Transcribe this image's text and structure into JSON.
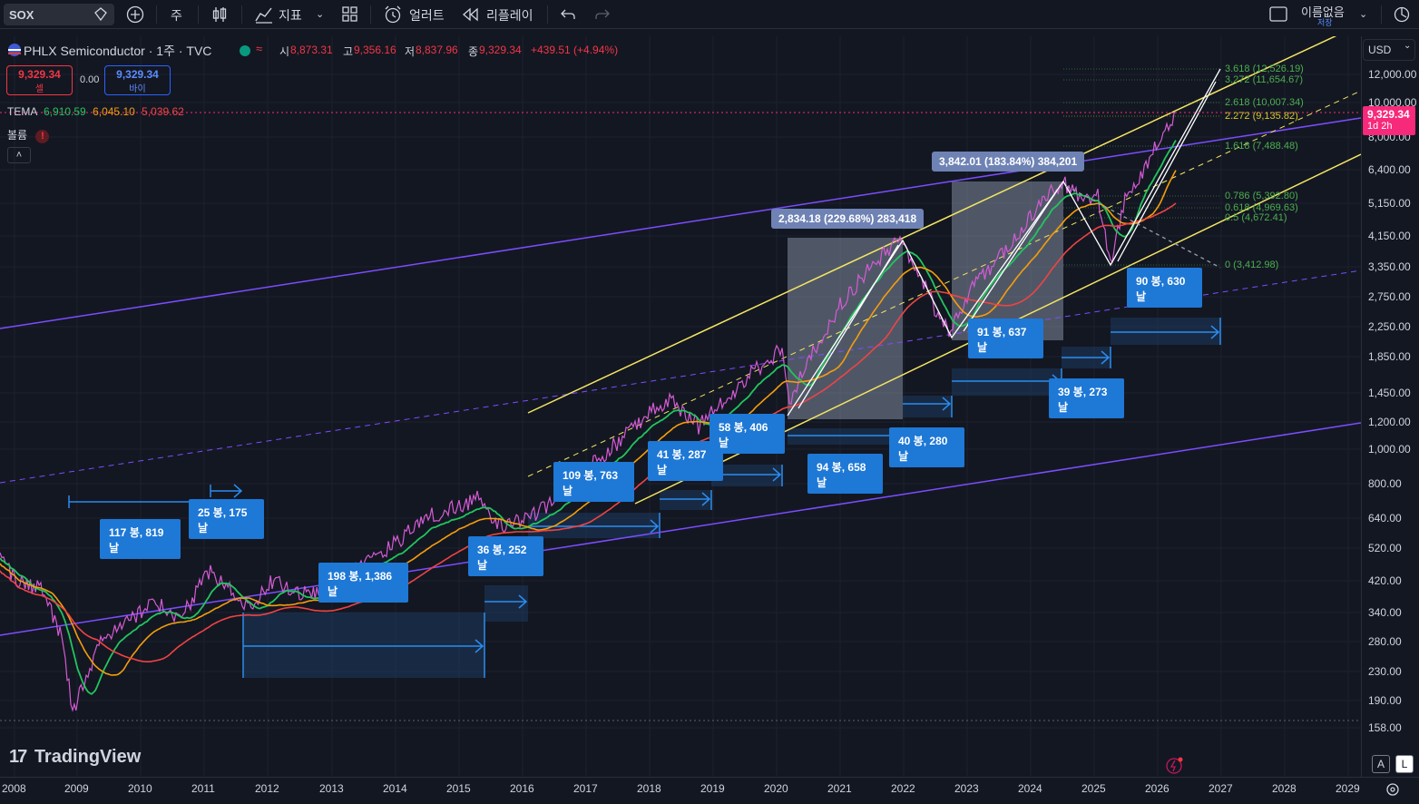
{
  "toolbar": {
    "symbol": "SOX",
    "interval": "주",
    "indicators_label": "지표",
    "alert_label": "얼러트",
    "replay_label": "리플레이",
    "layout_name": "이름없음",
    "layout_save": "저장"
  },
  "legend": {
    "title": "PHLX Semiconductor · 1주 · TVC",
    "open_label": "시",
    "open": "8,873.31",
    "high_label": "고",
    "high": "9,356.16",
    "low_label": "저",
    "low": "8,837.96",
    "close_label": "종",
    "close": "9,329.34",
    "change": "+439.51 (+4.94%)",
    "sell_price": "9,329.34",
    "sell_label": "셀",
    "spread": "0.00",
    "buy_price": "9,329.34",
    "buy_label": "바이",
    "tema_label": "TEMA",
    "tema_1": "6,910.59",
    "tema_2": "6,045.10",
    "tema_3": "5,039.62",
    "volume_label": "볼륨"
  },
  "price_axis": {
    "currency": "USD",
    "labels": [
      "12,000.00",
      "10,000.00",
      "8,000.00",
      "6,400.00",
      "5,150.00",
      "4,150.00",
      "3,350.00",
      "2,750.00",
      "2,250.00",
      "1,850.00",
      "1,450.00",
      "1,200.00",
      "1,000.00",
      "800.00",
      "640.00",
      "520.00",
      "420.00",
      "340.00",
      "280.00",
      "230.00",
      "190.00",
      "158.00"
    ],
    "current_price": "9,329.34",
    "countdown": "1d 2h"
  },
  "time_axis": {
    "labels": [
      "2008",
      "2009",
      "2010",
      "2011",
      "2012",
      "2013",
      "2014",
      "2015",
      "2016",
      "2017",
      "2018",
      "2019",
      "2020",
      "2021",
      "2022",
      "2023",
      "2024",
      "2025",
      "2026",
      "2027",
      "2028",
      "2029"
    ]
  },
  "fib_levels": [
    {
      "text": "3.618 (12,526.19)",
      "color": "#4caf50"
    },
    {
      "text": "3.272 (11,654.67)",
      "color": "#4caf50"
    },
    {
      "text": "2.618 (10,007.34)",
      "color": "#4caf50"
    },
    {
      "text": "2.272 (9,135.82)",
      "color": "#d4c830"
    },
    {
      "text": "1.618 (7,488.48)",
      "color": "#4caf50"
    },
    {
      "text": "0.786 (5,392.80)",
      "color": "#4caf50"
    },
    {
      "text": "0.618 (4,969.63)",
      "color": "#4caf50"
    },
    {
      "text": "0.5 (4,672.41)",
      "color": "#4caf50"
    },
    {
      "text": "0 (3,412.98)",
      "color": "#4caf50"
    }
  ],
  "measure_labels": [
    "2,834.18 (229.68%) 283,418",
    "3,842.01 (183.84%) 384,201"
  ],
  "range_labels": [
    "117 봉, 819날",
    "25 봉, 175날",
    "198 봉, 1,386날",
    "36 봉, 252날",
    "109 봉, 763날",
    "41 봉, 287날",
    "58 봉, 406날",
    "94 봉, 658날",
    "40 봉, 280날",
    "91 봉, 637날",
    "39 봉, 273날",
    "90 봉, 630날"
  ],
  "branding": {
    "logo": "TradingView"
  },
  "colors": {
    "background": "#131722",
    "price_line": "#d45bd4",
    "tema_fast": "#22c55e",
    "tema_mid": "#f59e0b",
    "tema_slow": "#ef4444",
    "channel_yellow": "#f5e663",
    "channel_purple": "#7c4dff",
    "label_blue": "#1e78d6",
    "current_price": "#f7297a"
  }
}
